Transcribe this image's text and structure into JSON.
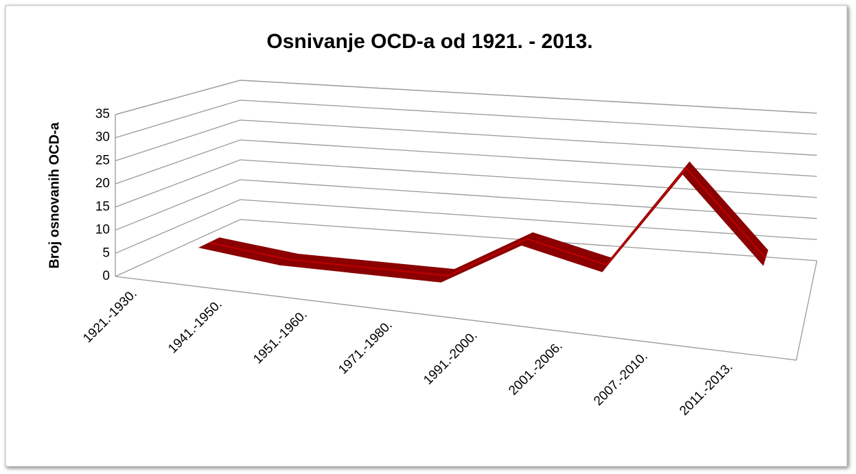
{
  "chart_data": {
    "type": "line3d",
    "title": "Osnivanje OCD-a od 1921. - 2013.",
    "y_label": "Broj osnovanih OCD-a",
    "categories": [
      "1921.-1930.",
      "1941.-1950.",
      "1951.-1960.",
      "1971.-1980.",
      "1991.-2000.",
      "2001.-2006.",
      "2007.-2010.",
      "2011.-2013."
    ],
    "series": [
      {
        "name": "Broj osnovanih OCD-a",
        "color": "#8b0000",
        "values": [
          3,
          1,
          1,
          1,
          11,
          7,
          30,
          12
        ]
      }
    ],
    "ylim": [
      0,
      35
    ],
    "yticks": [
      0,
      5,
      10,
      15,
      20,
      25,
      30,
      35
    ],
    "grid": true
  }
}
